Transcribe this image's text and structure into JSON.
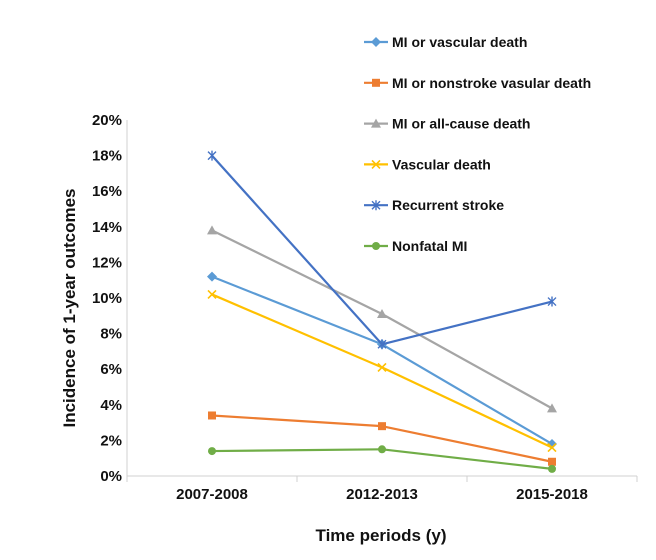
{
  "chart_data": {
    "type": "line",
    "title": "",
    "xlabel": "Time periods (y)",
    "ylabel": "Incidence of 1-year outcomes",
    "categories": [
      "2007-2008",
      "2012-2013",
      "2015-2018"
    ],
    "ylim": [
      0,
      20
    ],
    "yticks": [
      "0%",
      "2%",
      "4%",
      "6%",
      "8%",
      "10%",
      "12%",
      "14%",
      "16%",
      "18%",
      "20%"
    ],
    "grid": false,
    "legend_position": "top-right",
    "series": [
      {
        "name": "MI or vascular death",
        "values": [
          11.2,
          7.4,
          1.8
        ],
        "color": "#5B9BD5",
        "marker": "diamond"
      },
      {
        "name": "MI or nonstroke vasular death",
        "values": [
          3.4,
          2.8,
          0.8
        ],
        "color": "#ED7D31",
        "marker": "square"
      },
      {
        "name": "MI or all-cause death",
        "values": [
          13.8,
          9.1,
          3.8
        ],
        "color": "#A5A5A5",
        "marker": "triangle"
      },
      {
        "name": "Vascular death",
        "values": [
          10.2,
          6.1,
          1.6
        ],
        "color": "#FFC000",
        "marker": "x"
      },
      {
        "name": "Recurrent stroke",
        "values": [
          18.0,
          7.4,
          9.8
        ],
        "color": "#4472C4",
        "marker": "star"
      },
      {
        "name": "Nonfatal MI",
        "values": [
          1.4,
          1.5,
          0.4
        ],
        "color": "#70AD47",
        "marker": "circle"
      }
    ]
  }
}
